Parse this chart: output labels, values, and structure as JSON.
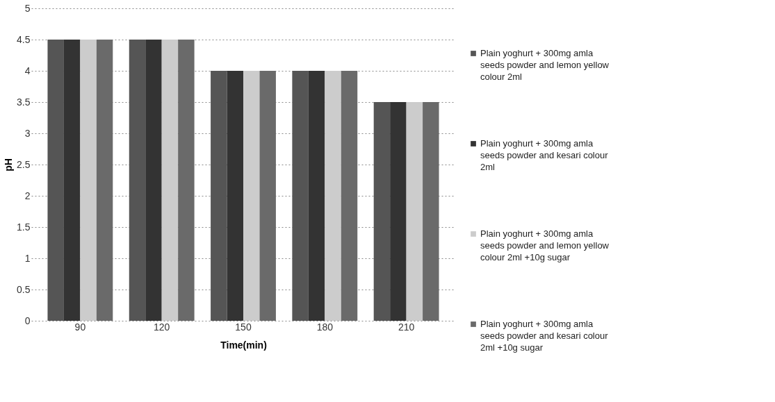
{
  "chart_data": {
    "type": "bar",
    "xlabel": "Time(min)",
    "ylabel": "pH",
    "categories": [
      "90",
      "120",
      "150",
      "180",
      "210"
    ],
    "series": [
      {
        "name": "Plain yoghurt +  300mg amla seeds powder and lemon yellow colour 2ml",
        "color": "#555555",
        "values": [
          4.5,
          4.5,
          4.0,
          4.0,
          3.5
        ]
      },
      {
        "name": "Plain yoghurt +  300mg amla seeds powder and kesari colour 2ml",
        "color": "#333333",
        "values": [
          4.5,
          4.5,
          4.0,
          4.0,
          3.5
        ]
      },
      {
        "name": "Plain yoghurt +  300mg amla seeds powder and lemon yellow colour 2ml +10g sugar",
        "color": "#cccccc",
        "values": [
          4.5,
          4.5,
          4.0,
          4.0,
          3.5
        ]
      },
      {
        "name": "Plain yoghurt +  300mg amla seeds powder and kesari colour 2ml +10g sugar",
        "color": "#6a6a6a",
        "values": [
          4.5,
          4.5,
          4.0,
          4.0,
          3.5
        ]
      }
    ],
    "ylim": [
      0,
      5
    ],
    "yticks": [
      0,
      0.5,
      1,
      1.5,
      2,
      2.5,
      3,
      3.5,
      4,
      4.5,
      5
    ],
    "grid": "y",
    "legend": "right"
  }
}
